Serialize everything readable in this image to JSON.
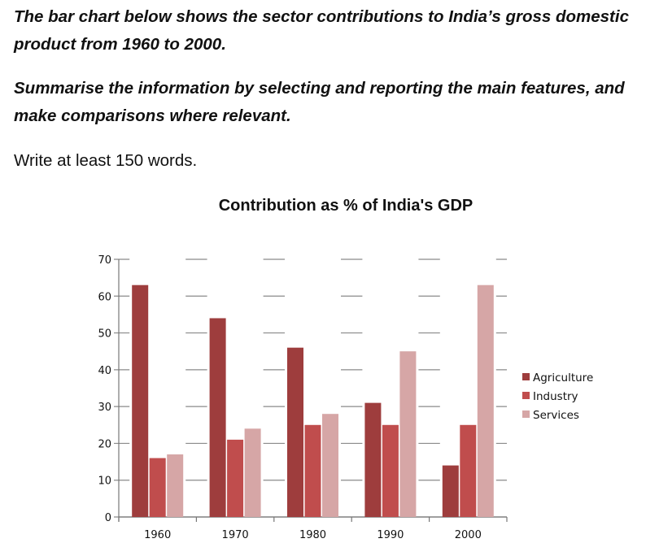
{
  "task": {
    "prompt_1": "The bar chart below shows the sector contributions to India’s gross domestic product from 1960 to 2000.",
    "prompt_2": "Summarise the information by selecting and reporting the main features, and make comparisons where relevant.",
    "instruction": "Write at least 150 words."
  },
  "chart_data": {
    "type": "bar",
    "title": "Contribution as % of India's GDP",
    "xlabel": "",
    "ylabel": "",
    "categories": [
      "1960",
      "1970",
      "1980",
      "1990",
      "2000"
    ],
    "series": [
      {
        "name": "Agriculture",
        "color": "#9e3d3d",
        "values": [
          63,
          54,
          46,
          31,
          14
        ]
      },
      {
        "name": "Industry",
        "color": "#c04d4d",
        "values": [
          16,
          21,
          25,
          25,
          25
        ]
      },
      {
        "name": "Services",
        "color": "#d6a6a6",
        "values": [
          17,
          24,
          28,
          45,
          63
        ]
      }
    ],
    "ylim": [
      0,
      70
    ],
    "yticks": [
      "0",
      "10",
      "20",
      "30",
      "40",
      "50",
      "60",
      "70"
    ],
    "grid": true,
    "legend": "right"
  }
}
